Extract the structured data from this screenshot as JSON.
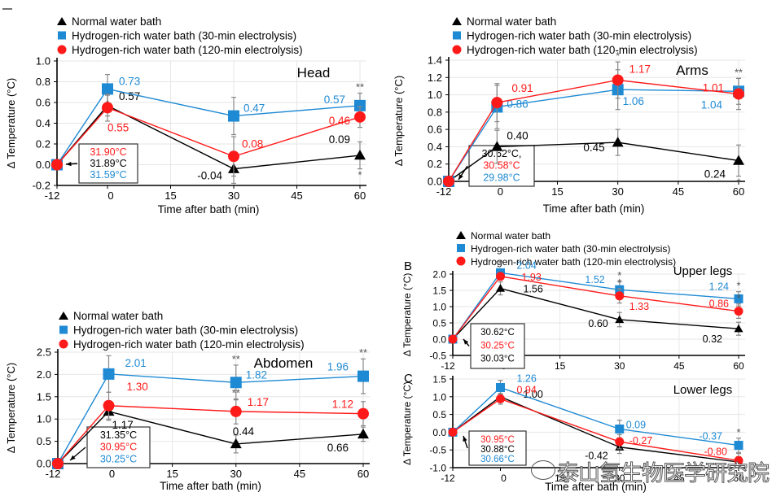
{
  "colors": {
    "normal": "#000000",
    "h30": "#1f8ad4",
    "h120": "#ff1a1a",
    "grid": "#e6e6e6",
    "axis": "#000000",
    "err": "#888888"
  },
  "legend": [
    "Normal water bath",
    "Hydrogen-rich water bath (30-min electrolysis)",
    "Hydrogen-rich water bath (120-min electrolysis)"
  ],
  "watermark": "泰山氢生物医学研究院",
  "chart_data": [
    {
      "type": "line",
      "id": "head",
      "title": "Head",
      "panel_label": "",
      "xlabel": "Time after bath (min)",
      "ylabel": "Δ Temperature (°C)",
      "x": [
        -12,
        0,
        30,
        60
      ],
      "xticks": [
        -12,
        0,
        15,
        30,
        45,
        60
      ],
      "ylim": [
        -0.2,
        1.0
      ],
      "yticks": [
        -0.2,
        0.0,
        0.2,
        0.4,
        0.6,
        0.8,
        1.0
      ],
      "ydec": 1,
      "series": [
        {
          "name": "Normal water bath",
          "key": "normal",
          "values": [
            0,
            0.57,
            -0.04,
            0.09
          ],
          "labels": [
            "",
            "0.57",
            "-0.04",
            "0.09"
          ],
          "err": [
            0,
            0.1,
            0.14,
            0.13
          ]
        },
        {
          "name": "Hydrogen-rich water bath (30-min electrolysis)",
          "key": "h30",
          "values": [
            0,
            0.73,
            0.47,
            0.57
          ],
          "labels": [
            "",
            "0.73",
            "0.47",
            "0.57"
          ],
          "err": [
            0,
            0.14,
            0.18,
            0.12
          ]
        },
        {
          "name": "Hydrogen-rich water bath (120-min electrolysis)",
          "key": "h120",
          "values": [
            0,
            0.55,
            0.08,
            0.46
          ],
          "labels": [
            "",
            "0.55",
            "0.08",
            "0.46"
          ],
          "err": [
            0,
            0.13,
            0.19,
            0.1
          ]
        }
      ],
      "significance": [
        {
          "x": 60,
          "text": "**",
          "pos": "top"
        },
        {
          "x": 60,
          "text": "*",
          "pos": "bottom"
        }
      ],
      "baseline_box": [
        {
          "key": "h120",
          "text": "31.90°C"
        },
        {
          "key": "normal",
          "text": "31.89°C"
        },
        {
          "key": "h30",
          "text": "31.59°C"
        }
      ]
    },
    {
      "type": "line",
      "id": "arms",
      "title": "Arms",
      "panel_label": "",
      "xlabel": "Time after bath (min)",
      "ylabel": "Δ Temperature (°C)",
      "x": [
        -12,
        0,
        30,
        60
      ],
      "xticks": [
        -12,
        0,
        15,
        30,
        45,
        60
      ],
      "ylim": [
        0.0,
        1.4
      ],
      "yticks": [
        0.0,
        0.2,
        0.4,
        0.6,
        0.8,
        1.0,
        1.2,
        1.4
      ],
      "ydec": 1,
      "series": [
        {
          "name": "Normal water bath",
          "key": "normal",
          "values": [
            0,
            0.4,
            0.45,
            0.24
          ],
          "labels": [
            "",
            "0.40",
            "0.45",
            "0.24"
          ],
          "err": [
            0,
            0.19,
            0.15,
            0.18
          ]
        },
        {
          "name": "Hydrogen-rich water bath (30-min electrolysis)",
          "key": "h30",
          "values": [
            0,
            0.86,
            1.06,
            1.04
          ],
          "labels": [
            "",
            "0.86",
            "1.06",
            "1.04"
          ],
          "err": [
            0,
            0.25,
            0.23,
            0.15
          ]
        },
        {
          "name": "Hydrogen-rich water bath (120-min electrolysis)",
          "key": "h120",
          "values": [
            0,
            0.91,
            1.17,
            1.01
          ],
          "labels": [
            "",
            "0.91",
            "1.17",
            "1.01"
          ],
          "err": [
            0,
            0.22,
            0.21,
            0.18
          ]
        }
      ],
      "significance": [
        {
          "x": 30,
          "text": "*",
          "pos": "top"
        },
        {
          "x": 60,
          "text": "**",
          "pos": "top"
        },
        {
          "x": 60,
          "text": "*",
          "pos": "bottom"
        }
      ],
      "baseline_box": [
        {
          "key": "normal",
          "text": "30.62°C,"
        },
        {
          "key": "h120",
          "text": "30.58°C"
        },
        {
          "key": "h30",
          "text": "29.98°C"
        }
      ]
    },
    {
      "type": "line",
      "id": "abdomen",
      "title": "Abdomen",
      "panel_label": "",
      "xlabel": "Time after bath (min)",
      "ylabel": "Δ Temperature (°C)",
      "x": [
        -12,
        0,
        30,
        60
      ],
      "xticks": [
        -12,
        0,
        15,
        30,
        45,
        60
      ],
      "ylim": [
        0.0,
        2.5
      ],
      "yticks": [
        0.0,
        0.5,
        1.0,
        1.5,
        2.0,
        2.5
      ],
      "ydec": 1,
      "series": [
        {
          "name": "Normal water bath",
          "key": "normal",
          "values": [
            0,
            1.17,
            0.44,
            0.66
          ],
          "labels": [
            "",
            "1.17",
            "0.44",
            "0.66"
          ],
          "err": [
            0,
            0.2,
            0.2,
            0.16
          ]
        },
        {
          "name": "Hydrogen-rich water bath (30-min electrolysis)",
          "key": "h30",
          "values": [
            0,
            2.01,
            1.82,
            1.96
          ],
          "labels": [
            "",
            "2.01",
            "1.82",
            "1.96"
          ],
          "err": [
            0,
            0.41,
            0.39,
            0.39
          ]
        },
        {
          "name": "Hydrogen-rich water bath (120-min electrolysis)",
          "key": "h120",
          "values": [
            0,
            1.3,
            1.17,
            1.12
          ],
          "labels": [
            "",
            "1.30",
            "1.17",
            "1.12"
          ],
          "err": [
            0,
            0.3,
            0.28,
            0.27
          ]
        }
      ],
      "significance": [
        {
          "x": 30,
          "text": "**",
          "pos": "top"
        },
        {
          "x": 30,
          "text": "**",
          "pos": "mid"
        },
        {
          "x": 60,
          "text": "**",
          "pos": "top"
        }
      ],
      "baseline_box": [
        {
          "key": "normal",
          "text": "31.35°C"
        },
        {
          "key": "h120",
          "text": "30.95°C"
        },
        {
          "key": "h30",
          "text": "30.25°C"
        }
      ]
    },
    {
      "type": "line",
      "id": "upper-legs",
      "title": "Upper legs",
      "panel_label": "B",
      "xlabel": "",
      "ylabel": "Δ Temperature (°C)",
      "x": [
        -12,
        0,
        30,
        60
      ],
      "xticks": [
        -12,
        0,
        15,
        30,
        45,
        60
      ],
      "ylim": [
        -0.5,
        2.0
      ],
      "yticks": [
        -0.5,
        0.0,
        0.5,
        1.0,
        1.5,
        2.0
      ],
      "ydec": 1,
      "series": [
        {
          "name": "Normal water bath",
          "key": "normal",
          "values": [
            0,
            1.56,
            0.6,
            0.32
          ],
          "labels": [
            "",
            "1.56",
            "0.60",
            "0.32"
          ],
          "err": [
            0,
            0.2,
            0.22,
            0.2
          ]
        },
        {
          "name": "Hydrogen-rich water bath (30-min electrolysis)",
          "key": "h30",
          "values": [
            0,
            2.04,
            1.52,
            1.24
          ],
          "labels": [
            "",
            "2.04",
            "1.52",
            "1.24"
          ],
          "err": [
            0,
            0.1,
            0.25,
            0.22
          ]
        },
        {
          "name": "Hydrogen-rich water bath (120-min electrolysis)",
          "key": "h120",
          "values": [
            0,
            1.93,
            1.33,
            0.86
          ],
          "labels": [
            "",
            "1.93",
            "1.33",
            "0.86"
          ],
          "err": [
            0,
            0.1,
            0.22,
            0.22
          ]
        }
      ],
      "significance": [
        {
          "x": 0,
          "text": "*",
          "pos": "top"
        },
        {
          "x": 30,
          "text": "*",
          "pos": "top"
        },
        {
          "x": 30,
          "text": "*",
          "pos": "mid"
        },
        {
          "x": 60,
          "text": "*",
          "pos": "top"
        },
        {
          "x": 60,
          "text": "*",
          "pos": "mid"
        }
      ],
      "baseline_box": [
        {
          "key": "normal",
          "text": "30.62°C"
        },
        {
          "key": "h120",
          "text": "30.25°C"
        },
        {
          "key": "normal",
          "text": "30.03°C"
        }
      ]
    },
    {
      "type": "line",
      "id": "lower-legs",
      "title": "Lower legs",
      "panel_label": "C",
      "xlabel": "Time after bath (min)",
      "ylabel": "Δ Temperature (°C)",
      "x": [
        -12,
        0,
        30,
        60
      ],
      "xticks": [
        -12,
        0,
        15,
        30,
        45,
        60
      ],
      "ylim": [
        -1.0,
        1.5
      ],
      "yticks": [
        -1.0,
        -0.5,
        0.0,
        0.5,
        1.0,
        1.5
      ],
      "ydec": 1,
      "series": [
        {
          "name": "Normal water bath",
          "key": "normal",
          "values": [
            0,
            1.0,
            -0.42,
            -0.84
          ],
          "labels": [
            "",
            "1.00",
            "-0.42",
            ""
          ],
          "err": [
            0,
            0.15,
            0.18,
            0.15
          ]
        },
        {
          "name": "Hydrogen-rich water bath (30-min electrolysis)",
          "key": "h30",
          "values": [
            0,
            1.26,
            0.09,
            -0.37
          ],
          "labels": [
            "",
            "1.26",
            "0.09",
            "-0.37"
          ],
          "err": [
            0,
            0.2,
            0.25,
            0.2
          ]
        },
        {
          "name": "Hydrogen-rich water bath (120-min electrolysis)",
          "key": "h120",
          "values": [
            0,
            0.94,
            -0.27,
            -0.8
          ],
          "labels": [
            "",
            "0.94",
            "-0.27",
            "-0.80"
          ],
          "err": [
            0,
            0.15,
            0.2,
            0.2
          ]
        }
      ],
      "significance": [
        {
          "x": 60,
          "text": "*",
          "pos": "top"
        }
      ],
      "baseline_box": [
        {
          "key": "h120",
          "text": "30.95°C"
        },
        {
          "key": "normal",
          "text": "30.88°C"
        },
        {
          "key": "h30",
          "text": "30.66°C"
        }
      ]
    }
  ]
}
